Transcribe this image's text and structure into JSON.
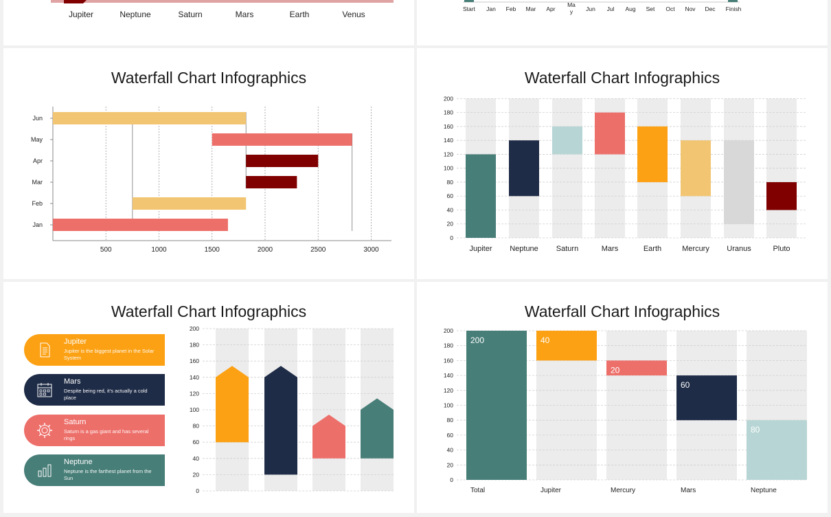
{
  "colors": {
    "teal": "#487e78",
    "navy": "#1f2c47",
    "lightblue": "#b7d5d4",
    "coral": "#ed6f6a",
    "orange": "#fca114",
    "sand": "#f2c572",
    "lightgray": "#d8d8d8",
    "maroon": "#800000",
    "bg_column": "#ececec",
    "pink_bar": "#dfa3a3"
  },
  "panels": {
    "p1": {
      "x_labels": [
        "Jupiter",
        "Neptune",
        "Saturn",
        "Mars",
        "Earth",
        "Venus"
      ]
    },
    "p2": {
      "x_labels": [
        "Start",
        "Jan",
        "Feb",
        "Mar",
        "Apr",
        "Ma\ny",
        "Jun",
        "Jul",
        "Aug",
        "Set",
        "Oct",
        "Nov",
        "Dec",
        "Finish"
      ]
    },
    "p3": {
      "title": "Waterfall Chart Infographics"
    },
    "p4": {
      "title": "Waterfall Chart Infographics"
    },
    "p5": {
      "title": "Waterfall Chart Infographics",
      "cards": [
        {
          "title": "Jupiter",
          "desc": "Jupiter is the biggest planet in the Solar System",
          "icon": "document-icon",
          "color": "#fca114"
        },
        {
          "title": "Mars",
          "desc": "Despite being red, it’s actually a cold place",
          "icon": "calendar-icon",
          "color": "#1f2c47"
        },
        {
          "title": "Saturn",
          "desc": "Saturn is a gas giant and has several rings",
          "icon": "gear-icon",
          "color": "#ed6f6a"
        },
        {
          "title": "Neptune",
          "desc": "Neptune is the farthest planet from the Sun",
          "icon": "bar-chart-icon",
          "color": "#487e78"
        }
      ]
    },
    "p6": {
      "title": "Waterfall Chart Infographics"
    }
  },
  "chart_data": [
    {
      "id": "p1",
      "type": "bar",
      "categories": [
        "Jupiter",
        "Neptune",
        "Saturn",
        "Mars",
        "Earth",
        "Venus"
      ],
      "note_visible": "cropped at top edge; only category labels and baseline bar visible"
    },
    {
      "id": "p2",
      "type": "bar",
      "categories": [
        "Start",
        "Jan",
        "Feb",
        "Mar",
        "Apr",
        "Ma\ny",
        "Jun",
        "Jul",
        "Aug",
        "Set",
        "Oct",
        "Nov",
        "Dec",
        "Finish"
      ]
    },
    {
      "id": "p3",
      "type": "bar",
      "orientation": "horizontal",
      "title": "Waterfall Chart Infographics",
      "categories": [
        "Jan",
        "Feb",
        "Mar",
        "Apr",
        "May",
        "Jun"
      ],
      "xlim": [
        0,
        3200
      ],
      "x_ticks": [
        500,
        1000,
        1500,
        2000,
        2500,
        3000
      ],
      "bars": [
        {
          "category": "Jan",
          "start": 0,
          "end": 1650,
          "color": "#ed6f6a"
        },
        {
          "category": "Feb",
          "start": 750,
          "end": 1820,
          "color": "#f2c572"
        },
        {
          "category": "Mar",
          "start": 1820,
          "end": 2300,
          "color": "#800000"
        },
        {
          "category": "Apr",
          "start": 1820,
          "end": 2500,
          "color": "#800000"
        },
        {
          "category": "May",
          "start": 1500,
          "end": 2820,
          "color": "#ed6f6a"
        },
        {
          "category": "Jun",
          "start": 0,
          "end": 1820,
          "color": "#f2c572"
        }
      ]
    },
    {
      "id": "p4",
      "type": "bar",
      "title": "Waterfall Chart Infographics",
      "categories": [
        "Jupiter",
        "Neptune",
        "Saturn",
        "Mars",
        "Earth",
        "Mercury",
        "Uranus",
        "Pluto"
      ],
      "ylim": [
        0,
        200
      ],
      "y_ticks": [
        0,
        20,
        40,
        60,
        80,
        100,
        120,
        140,
        160,
        180,
        200
      ],
      "bars": [
        {
          "category": "Jupiter",
          "low": 0,
          "high": 120,
          "color": "#487e78"
        },
        {
          "category": "Neptune",
          "low": 60,
          "high": 140,
          "color": "#1f2c47"
        },
        {
          "category": "Saturn",
          "low": 120,
          "high": 160,
          "color": "#b7d5d4"
        },
        {
          "category": "Mars",
          "low": 120,
          "high": 180,
          "color": "#ed6f6a"
        },
        {
          "category": "Earth",
          "low": 80,
          "high": 160,
          "color": "#fca114"
        },
        {
          "category": "Mercury",
          "low": 60,
          "high": 140,
          "color": "#f2c572"
        },
        {
          "category": "Uranus",
          "low": 20,
          "high": 140,
          "color": "#d8d8d8"
        },
        {
          "category": "Pluto",
          "low": 40,
          "high": 80,
          "color": "#800000"
        }
      ]
    },
    {
      "id": "p5",
      "type": "bar",
      "title": "Waterfall Chart Infographics",
      "ylim": [
        0,
        200
      ],
      "y_ticks": [
        0,
        20,
        40,
        60,
        80,
        100,
        120,
        140,
        160,
        180,
        200
      ],
      "bars": [
        {
          "low": 60,
          "high": 140,
          "peak": 154,
          "color": "#fca114"
        },
        {
          "low": 20,
          "high": 140,
          "peak": 154,
          "color": "#1f2c47"
        },
        {
          "low": 40,
          "high": 80,
          "peak": 94,
          "color": "#ed6f6a"
        },
        {
          "low": 40,
          "high": 100,
          "peak": 114,
          "color": "#487e78"
        }
      ]
    },
    {
      "id": "p6",
      "type": "bar",
      "title": "Waterfall Chart Infographics",
      "categories": [
        "Total",
        "Jupiter",
        "Mercury",
        "Mars",
        "Neptune"
      ],
      "ylim": [
        0,
        200
      ],
      "y_ticks": [
        0,
        20,
        40,
        60,
        80,
        100,
        120,
        140,
        160,
        180,
        200
      ],
      "bars": [
        {
          "category": "Total",
          "low": 0,
          "high": 200,
          "label": "200",
          "color": "#487e78"
        },
        {
          "category": "Jupiter",
          "low": 160,
          "high": 200,
          "label": "40",
          "color": "#fca114"
        },
        {
          "category": "Mercury",
          "low": 140,
          "high": 160,
          "label": "20",
          "color": "#ed6f6a"
        },
        {
          "category": "Mars",
          "low": 80,
          "high": 140,
          "label": "60",
          "color": "#1f2c47"
        },
        {
          "category": "Neptune",
          "low": 0,
          "high": 80,
          "label": "80",
          "color": "#b7d5d4"
        }
      ]
    }
  ]
}
